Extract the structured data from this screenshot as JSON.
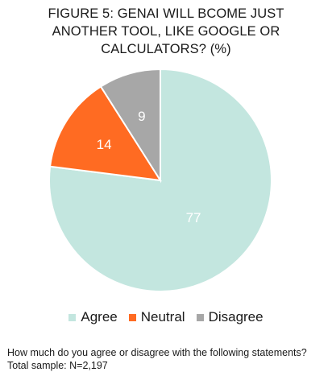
{
  "chart_data": {
    "type": "pie",
    "title_lines": [
      "FIGURE 5: GENAI WILL BCOME JUST",
      "ANOTHER TOOL, LIKE GOOGLE OR",
      "CALCULATORS? (%)"
    ],
    "categories": [
      "Agree",
      "Neutral",
      "Disagree"
    ],
    "values": [
      77,
      14,
      9
    ],
    "colors": [
      "#c3e6df",
      "#ff6b22",
      "#a7a7a7"
    ],
    "label_color": "#ffffff",
    "legend_position": "bottom",
    "start_direction": "clockwise from 12 o'clock, largest slice first"
  },
  "footnote": {
    "question": "How much do you agree or disagree with the following statements?",
    "sample": "Total sample: N=2,197"
  }
}
